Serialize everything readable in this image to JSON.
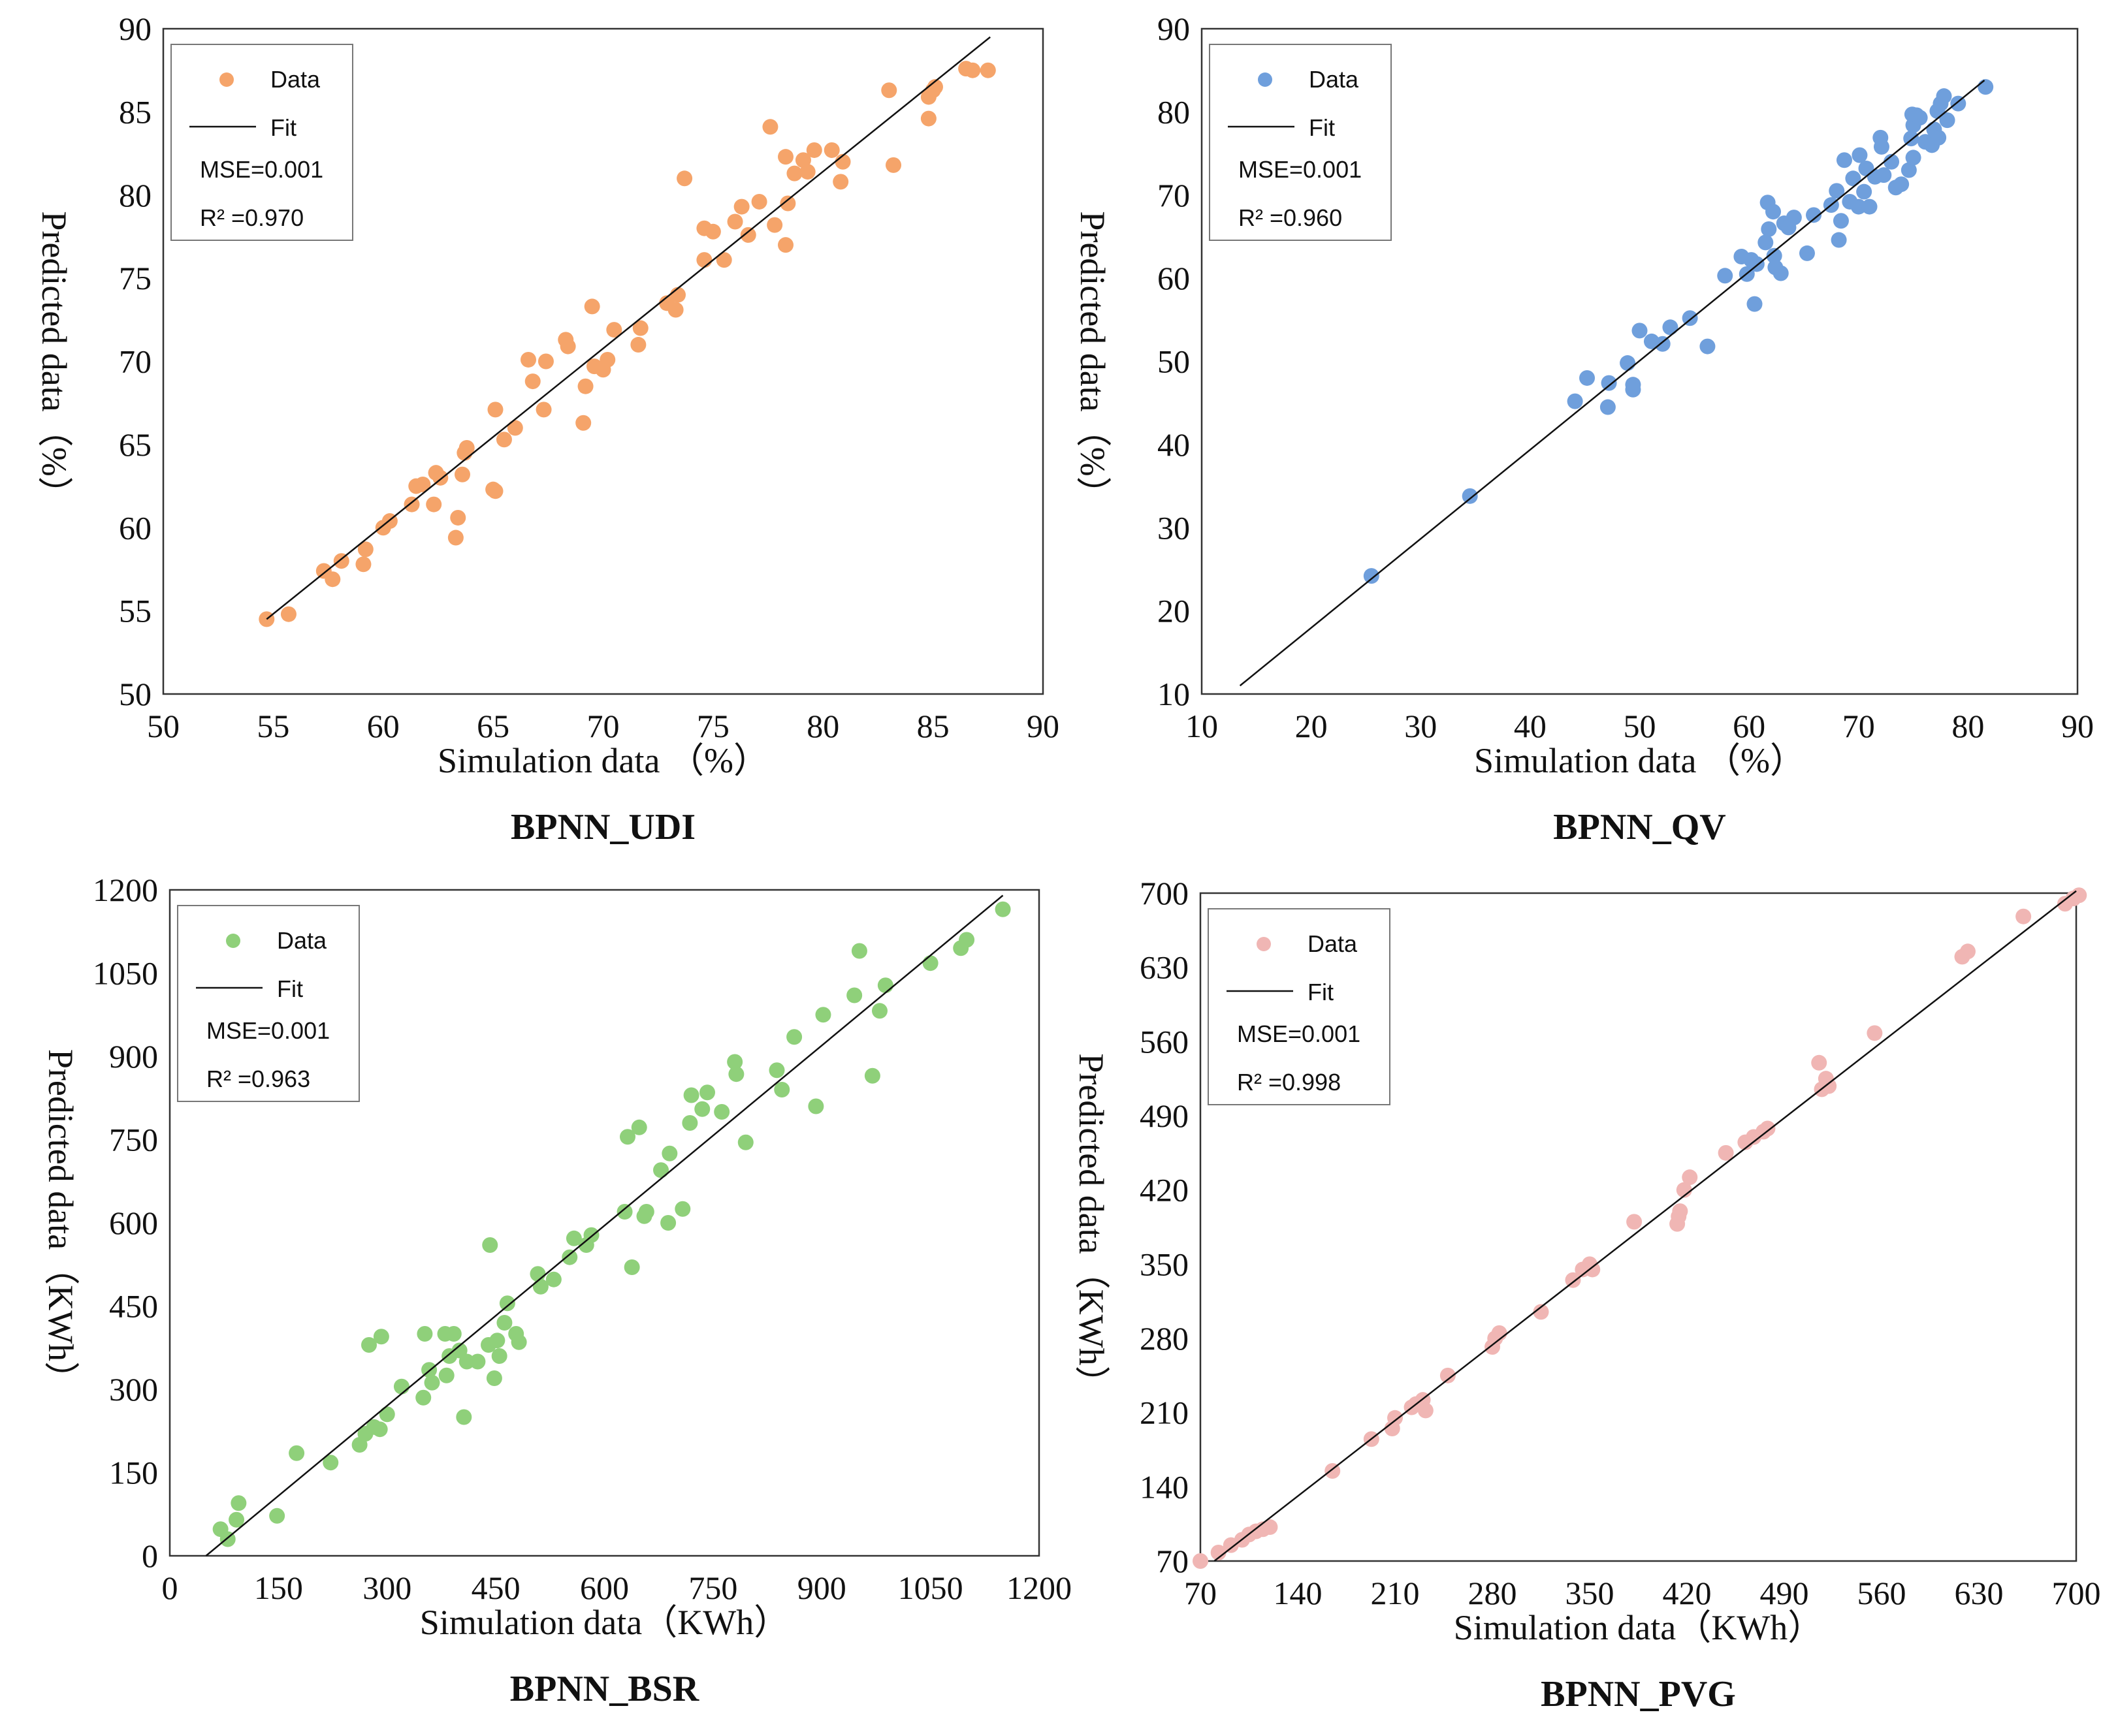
{
  "labels": {
    "legend_data": "Data",
    "legend_fit": "Fit",
    "xlabel_pct": "Simulation data （%）",
    "ylabel_pct": "Predicted data（%）",
    "xlabel_kwh": "Simulation data（KWh）",
    "ylabel_kwh": "Predicted data（KWh）"
  },
  "chart_data": [
    {
      "type": "scatter",
      "title": "BPNN_UDI",
      "xlabel": "Simulation data （%）",
      "ylabel": "Predicted data（%）",
      "xlim": [
        50,
        90
      ],
      "ylim": [
        50,
        90
      ],
      "xticks": [
        50,
        55,
        60,
        65,
        70,
        75,
        80,
        85,
        90
      ],
      "yticks": [
        50,
        55,
        60,
        65,
        70,
        75,
        80,
        85,
        90
      ],
      "color": "#F5A46A",
      "mse": "MSE=0.001",
      "r2": "R²   =0.970",
      "fit": [
        [
          54.7,
          54.5
        ],
        [
          87.6,
          89.5
        ]
      ],
      "points": [
        [
          54.7,
          54.5
        ],
        [
          55.7,
          54.8
        ],
        [
          57.3,
          57.4
        ],
        [
          57.7,
          56.9
        ],
        [
          58.1,
          58.0
        ],
        [
          59.1,
          57.8
        ],
        [
          59.2,
          58.7
        ],
        [
          60.0,
          60.0
        ],
        [
          60.3,
          60.4
        ],
        [
          61.3,
          61.4
        ],
        [
          61.5,
          62.5
        ],
        [
          61.8,
          62.6
        ],
        [
          62.3,
          61.4
        ],
        [
          62.4,
          63.3
        ],
        [
          62.6,
          63.0
        ],
        [
          63.3,
          59.4
        ],
        [
          63.4,
          60.6
        ],
        [
          63.6,
          63.2
        ],
        [
          63.7,
          64.5
        ],
        [
          63.8,
          64.8
        ],
        [
          65.0,
          62.3
        ],
        [
          65.1,
          62.2
        ],
        [
          65.1,
          67.1
        ],
        [
          65.5,
          65.3
        ],
        [
          66.0,
          66.0
        ],
        [
          66.6,
          70.1
        ],
        [
          66.8,
          68.8
        ],
        [
          67.3,
          67.1
        ],
        [
          67.4,
          70.0
        ],
        [
          68.3,
          71.3
        ],
        [
          68.4,
          70.9
        ],
        [
          69.1,
          66.3
        ],
        [
          69.2,
          68.5
        ],
        [
          69.5,
          73.3
        ],
        [
          69.6,
          69.7
        ],
        [
          70.0,
          69.5
        ],
        [
          70.2,
          70.1
        ],
        [
          70.5,
          71.9
        ],
        [
          71.6,
          71.0
        ],
        [
          71.7,
          72.0
        ],
        [
          72.9,
          73.5
        ],
        [
          73.3,
          73.1
        ],
        [
          73.4,
          74.0
        ],
        [
          73.7,
          81.0
        ],
        [
          74.6,
          78.0
        ],
        [
          74.6,
          76.1
        ],
        [
          75.0,
          77.8
        ],
        [
          75.5,
          76.1
        ],
        [
          76.0,
          78.4
        ],
        [
          76.3,
          79.3
        ],
        [
          76.6,
          77.6
        ],
        [
          77.1,
          79.6
        ],
        [
          77.6,
          84.1
        ],
        [
          77.8,
          78.2
        ],
        [
          78.3,
          82.3
        ],
        [
          78.3,
          77.0
        ],
        [
          78.4,
          79.5
        ],
        [
          78.7,
          81.3
        ],
        [
          79.1,
          82.1
        ],
        [
          79.3,
          81.4
        ],
        [
          79.6,
          82.7
        ],
        [
          80.4,
          82.7
        ],
        [
          80.8,
          80.8
        ],
        [
          80.9,
          82.0
        ],
        [
          83.0,
          86.3
        ],
        [
          83.2,
          81.8
        ],
        [
          84.8,
          84.6
        ],
        [
          84.8,
          85.9
        ],
        [
          85.0,
          86.3
        ],
        [
          85.1,
          86.5
        ],
        [
          86.5,
          87.6
        ],
        [
          86.8,
          87.5
        ],
        [
          87.5,
          87.5
        ]
      ]
    },
    {
      "type": "scatter",
      "title": "BPNN_QV",
      "xlabel": "Simulation data （%）",
      "ylabel": "Predicted data（%）",
      "xlim": [
        10,
        90
      ],
      "ylim": [
        10,
        90
      ],
      "xticks": [
        10,
        20,
        30,
        40,
        50,
        60,
        70,
        80,
        90
      ],
      "yticks": [
        10,
        20,
        30,
        40,
        50,
        60,
        70,
        80,
        90
      ],
      "color": "#6F9FDC",
      "mse": "MSE=0.001",
      "r2": "R²   =0.960",
      "fit": [
        [
          13.5,
          11.0
        ],
        [
          81.5,
          83.8
        ]
      ],
      "points": [
        [
          25.5,
          24.2
        ],
        [
          34.5,
          33.8
        ],
        [
          44.1,
          45.2
        ],
        [
          45.2,
          48.0
        ],
        [
          47.1,
          44.5
        ],
        [
          47.2,
          47.4
        ],
        [
          48.9,
          49.8
        ],
        [
          49.4,
          47.2
        ],
        [
          49.4,
          46.6
        ],
        [
          50.0,
          53.7
        ],
        [
          51.1,
          52.4
        ],
        [
          52.1,
          52.1
        ],
        [
          52.8,
          54.1
        ],
        [
          54.6,
          55.2
        ],
        [
          56.2,
          51.8
        ],
        [
          57.8,
          60.3
        ],
        [
          59.3,
          62.6
        ],
        [
          59.8,
          60.5
        ],
        [
          60.2,
          62.2
        ],
        [
          60.5,
          56.9
        ],
        [
          60.7,
          61.7
        ],
        [
          61.5,
          64.3
        ],
        [
          61.7,
          69.1
        ],
        [
          61.8,
          65.9
        ],
        [
          62.2,
          68.0
        ],
        [
          62.3,
          62.7
        ],
        [
          62.4,
          61.3
        ],
        [
          62.9,
          60.6
        ],
        [
          63.2,
          66.6
        ],
        [
          63.6,
          66.1
        ],
        [
          64.1,
          67.3
        ],
        [
          65.3,
          63.0
        ],
        [
          65.9,
          67.6
        ],
        [
          67.5,
          68.8
        ],
        [
          68.0,
          70.5
        ],
        [
          68.2,
          64.6
        ],
        [
          68.4,
          66.9
        ],
        [
          68.7,
          74.2
        ],
        [
          69.2,
          69.2
        ],
        [
          69.5,
          72.0
        ],
        [
          70.0,
          68.6
        ],
        [
          70.1,
          74.8
        ],
        [
          70.5,
          70.4
        ],
        [
          70.7,
          73.2
        ],
        [
          71.0,
          68.6
        ],
        [
          71.5,
          72.2
        ],
        [
          72.0,
          76.9
        ],
        [
          72.1,
          75.8
        ],
        [
          72.3,
          72.4
        ],
        [
          73.0,
          74.0
        ],
        [
          73.4,
          70.9
        ],
        [
          73.9,
          71.3
        ],
        [
          74.6,
          73.0
        ],
        [
          74.8,
          76.8
        ],
        [
          74.9,
          79.7
        ],
        [
          75.0,
          78.4
        ],
        [
          75.0,
          74.5
        ],
        [
          75.3,
          79.6
        ],
        [
          75.6,
          79.3
        ],
        [
          76.1,
          76.4
        ],
        [
          76.7,
          76.0
        ],
        [
          76.9,
          77.9
        ],
        [
          77.2,
          80.1
        ],
        [
          77.3,
          76.9
        ],
        [
          77.5,
          81.0
        ],
        [
          77.8,
          81.9
        ],
        [
          78.1,
          79.0
        ],
        [
          79.1,
          81.0
        ],
        [
          81.6,
          83.0
        ]
      ]
    },
    {
      "type": "scatter",
      "title": "BPNN_BSR",
      "xlabel": "Simulation data（KWh）",
      "ylabel": "Predicted data（KWh）",
      "xlim": [
        0,
        1200
      ],
      "ylim": [
        0,
        1200
      ],
      "xticks": [
        0,
        150,
        300,
        450,
        600,
        750,
        900,
        1050,
        1200
      ],
      "yticks": [
        0,
        150,
        300,
        450,
        600,
        750,
        900,
        1050,
        1200
      ],
      "color": "#8FD07A",
      "mse": "MSE=0.001",
      "r2": "R²   =0.963",
      "fit": [
        [
          50,
          0
        ],
        [
          1150,
          1190
        ]
      ],
      "points": [
        [
          70,
          48
        ],
        [
          80,
          30
        ],
        [
          92,
          65
        ],
        [
          95,
          95
        ],
        [
          148,
          72
        ],
        [
          175,
          185
        ],
        [
          222,
          168
        ],
        [
          262,
          200
        ],
        [
          270,
          220
        ],
        [
          275,
          380
        ],
        [
          282,
          232
        ],
        [
          290,
          228
        ],
        [
          292,
          395
        ],
        [
          300,
          255
        ],
        [
          320,
          305
        ],
        [
          350,
          285
        ],
        [
          352,
          400
        ],
        [
          358,
          335
        ],
        [
          362,
          312
        ],
        [
          380,
          400
        ],
        [
          382,
          325
        ],
        [
          386,
          360
        ],
        [
          392,
          400
        ],
        [
          400,
          370
        ],
        [
          406,
          250
        ],
        [
          410,
          350
        ],
        [
          425,
          350
        ],
        [
          440,
          380
        ],
        [
          442,
          560
        ],
        [
          448,
          320
        ],
        [
          452,
          388
        ],
        [
          455,
          360
        ],
        [
          462,
          420
        ],
        [
          466,
          455
        ],
        [
          478,
          400
        ],
        [
          482,
          385
        ],
        [
          508,
          508
        ],
        [
          512,
          485
        ],
        [
          530,
          498
        ],
        [
          552,
          538
        ],
        [
          558,
          572
        ],
        [
          575,
          560
        ],
        [
          582,
          578
        ],
        [
          628,
          620
        ],
        [
          632,
          755
        ],
        [
          638,
          520
        ],
        [
          648,
          772
        ],
        [
          655,
          612
        ],
        [
          658,
          620
        ],
        [
          678,
          695
        ],
        [
          688,
          600
        ],
        [
          690,
          725
        ],
        [
          708,
          625
        ],
        [
          718,
          780
        ],
        [
          720,
          830
        ],
        [
          735,
          805
        ],
        [
          742,
          835
        ],
        [
          762,
          800
        ],
        [
          780,
          890
        ],
        [
          782,
          868
        ],
        [
          795,
          745
        ],
        [
          838,
          875
        ],
        [
          845,
          840
        ],
        [
          862,
          935
        ],
        [
          892,
          810
        ],
        [
          902,
          975
        ],
        [
          945,
          1010
        ],
        [
          952,
          1090
        ],
        [
          970,
          865
        ],
        [
          980,
          982
        ],
        [
          988,
          1028
        ],
        [
          1050,
          1068
        ],
        [
          1092,
          1095
        ],
        [
          1100,
          1110
        ],
        [
          1150,
          1165
        ]
      ]
    },
    {
      "type": "scatter",
      "title": "BPNN_PVG",
      "xlabel": "Simulation data（KWh）",
      "ylabel": "Predicted data（KWh）",
      "xlim": [
        70,
        700
      ],
      "ylim": [
        70,
        700
      ],
      "xticks": [
        70,
        140,
        210,
        280,
        350,
        420,
        490,
        560,
        630,
        700
      ],
      "yticks": [
        70,
        140,
        210,
        280,
        350,
        420,
        490,
        560,
        630,
        700
      ],
      "color": "#F0B6B4",
      "mse": "MSE=0.001",
      "r2": "R²   =0.998",
      "fit": [
        [
          80,
          70
        ],
        [
          700,
          702
        ]
      ],
      "points": [
        [
          70,
          70
        ],
        [
          83,
          78
        ],
        [
          92,
          85
        ],
        [
          100,
          90
        ],
        [
          105,
          95
        ],
        [
          110,
          98
        ],
        [
          115,
          100
        ],
        [
          120,
          102
        ],
        [
          165,
          155
        ],
        [
          193,
          185
        ],
        [
          208,
          195
        ],
        [
          210,
          205
        ],
        [
          222,
          215
        ],
        [
          225,
          218
        ],
        [
          230,
          222
        ],
        [
          232,
          212
        ],
        [
          248,
          245
        ],
        [
          280,
          272
        ],
        [
          282,
          280
        ],
        [
          285,
          285
        ],
        [
          315,
          305
        ],
        [
          338,
          335
        ],
        [
          345,
          345
        ],
        [
          350,
          350
        ],
        [
          352,
          345
        ],
        [
          382,
          390
        ],
        [
          413,
          388
        ],
        [
          414,
          395
        ],
        [
          415,
          400
        ],
        [
          418,
          420
        ],
        [
          422,
          432
        ],
        [
          448,
          455
        ],
        [
          462,
          465
        ],
        [
          468,
          470
        ],
        [
          475,
          475
        ],
        [
          478,
          478
        ],
        [
          515,
          540
        ],
        [
          517,
          515
        ],
        [
          520,
          525
        ],
        [
          522,
          518
        ],
        [
          555,
          568
        ],
        [
          618,
          640
        ],
        [
          622,
          645
        ],
        [
          662,
          678
        ],
        [
          692,
          690
        ],
        [
          698,
          695
        ],
        [
          702,
          698
        ]
      ]
    }
  ]
}
